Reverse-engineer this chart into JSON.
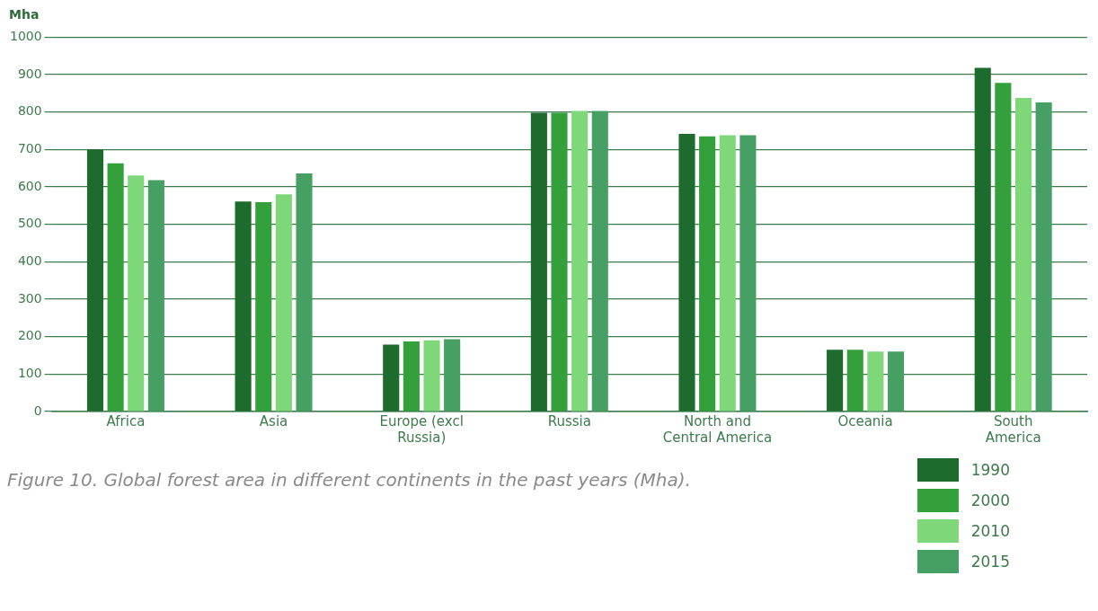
{
  "chart_data": {
    "type": "bar",
    "ylabel": "Mha",
    "categories": [
      "Africa",
      "Asia",
      "Europe (excl Russia)",
      "Russia",
      "North and Central America",
      "Oceania",
      "South America"
    ],
    "series": [
      {
        "name": "1990",
        "color": "#1e6b2e",
        "values": [
          700,
          561,
          179,
          798,
          742,
          165,
          918
        ]
      },
      {
        "name": "2000",
        "color": "#34a03c",
        "values": [
          663,
          559,
          187,
          798,
          735,
          165,
          878
        ]
      },
      {
        "name": "2010",
        "color": "#7ed87a",
        "values": [
          631,
          580,
          190,
          803,
          738,
          160,
          838
        ]
      },
      {
        "name": "2015",
        "color": "#46a063",
        "values": [
          618,
          636,
          193,
          803,
          738,
          160,
          826
        ]
      }
    ],
    "ylim": [
      0,
      1000
    ],
    "yticks": [
      0,
      100,
      200,
      300,
      400,
      500,
      600,
      700,
      800,
      900,
      1000
    ],
    "grid": "y",
    "legend": "bottom right",
    "annotations": [
      "Figure 10. Global forest area in different continents in the past years (Mha)."
    ]
  }
}
